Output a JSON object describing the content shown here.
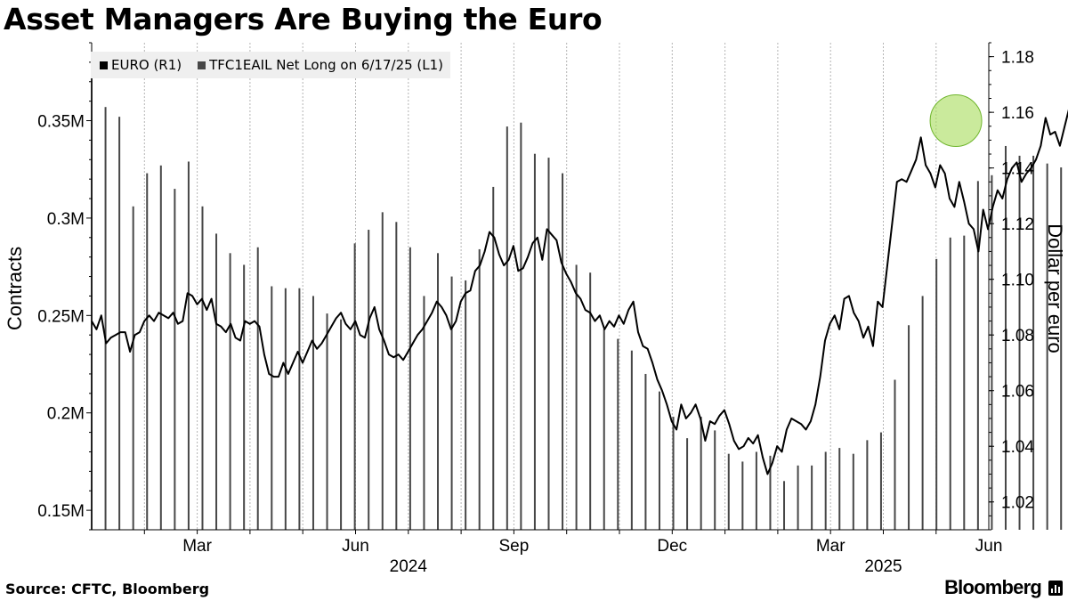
{
  "title": "Asset Managers Are Buying the Euro",
  "source": "Source: CFTC, Bloomberg",
  "brand": "Bloomberg",
  "colors": {
    "line": "#000000",
    "bars": "#474747",
    "grid": "#b4b4b4",
    "highlight": "#a6dc5a",
    "highlight_stroke": "#6fb52c"
  },
  "chart_data": {
    "type": "bar+line",
    "legend": [
      {
        "label": "EURO (R1)",
        "color": "#000000"
      },
      {
        "label": "TFC1EAIL Net Long on 6/17/25 (L1)",
        "color": "#474747"
      }
    ],
    "left_axis": {
      "label": "Contracts",
      "ticks": [
        "0.15M",
        "0.2M",
        "0.25M",
        "0.3M",
        "0.35M"
      ],
      "tick_values": [
        150000,
        200000,
        250000,
        300000,
        350000
      ],
      "range": [
        140000,
        390000
      ]
    },
    "right_axis": {
      "label": "Dollar per euro",
      "ticks": [
        "1.02",
        "1.04",
        "1.06",
        "1.08",
        "1.10",
        "1.12",
        "1.14",
        "1.16",
        "1.18"
      ],
      "tick_values": [
        1.02,
        1.04,
        1.06,
        1.08,
        1.1,
        1.12,
        1.14,
        1.16,
        1.18
      ],
      "range": [
        1.01,
        1.185
      ]
    },
    "x_axis": {
      "range_months": [
        0,
        18.8
      ],
      "month_ticks": [
        {
          "label": "Mar",
          "pos": 2
        },
        {
          "label": "Jun",
          "pos": 5
        },
        {
          "label": "Sep",
          "pos": 8
        },
        {
          "label": "Dec",
          "pos": 11
        },
        {
          "label": "Mar",
          "pos": 14
        },
        {
          "label": "Jun",
          "pos": 17
        }
      ],
      "year_labels": [
        {
          "label": "2024",
          "pos": 6
        },
        {
          "label": "2025",
          "pos": 15
        }
      ],
      "gridline_positions": [
        1,
        2,
        3,
        4,
        5,
        6,
        7,
        8,
        9,
        10,
        11,
        12,
        13,
        14,
        15,
        16,
        17,
        18
      ]
    },
    "series": [
      {
        "name": "TFC1EAIL Net Long (weekly)",
        "axis": "left",
        "type": "bar",
        "start_month": 0.0,
        "step_months": 0.2624,
        "values": [
          375000,
          357000,
          352000,
          306000,
          323000,
          327000,
          315000,
          329000,
          306000,
          292000,
          282000,
          276000,
          285000,
          265000,
          264000,
          264000,
          260000,
          251000,
          248000,
          287000,
          294000,
          303000,
          298000,
          285000,
          260000,
          282000,
          270000,
          268000,
          284000,
          316000,
          347000,
          349000,
          333000,
          331000,
          323000,
          276000,
          272000,
          243000,
          238000,
          232000,
          220000,
          211000,
          198000,
          187000,
          198000,
          191000,
          179000,
          175000,
          180000,
          178000,
          165000,
          173000,
          173000,
          180000,
          182000,
          179000,
          186000,
          190000,
          217000,
          245000,
          260000,
          279000,
          290000,
          291000,
          319000,
          322000,
          337000,
          332000,
          332000,
          328000,
          326000,
          335000,
          340000,
          341000,
          348000,
          349000,
          355000,
          378000
        ]
      },
      {
        "name": "EURO (daily)",
        "axis": "right",
        "type": "line",
        "points": [
          [
            0.0,
            1.085
          ],
          [
            0.1,
            1.082
          ],
          [
            0.2,
            1.087
          ],
          [
            0.3,
            1.077
          ],
          [
            0.4,
            1.079
          ],
          [
            0.5,
            1.08
          ],
          [
            0.6,
            1.081
          ],
          [
            0.7,
            1.081
          ],
          [
            0.8,
            1.074
          ],
          [
            0.9,
            1.08
          ],
          [
            1.0,
            1.081
          ],
          [
            1.1,
            1.085
          ],
          [
            1.2,
            1.087
          ],
          [
            1.3,
            1.085
          ],
          [
            1.4,
            1.088
          ],
          [
            1.5,
            1.087
          ],
          [
            1.6,
            1.086
          ],
          [
            1.7,
            1.088
          ],
          [
            1.8,
            1.084
          ],
          [
            1.9,
            1.085
          ],
          [
            2.0,
            1.095
          ],
          [
            2.1,
            1.094
          ],
          [
            2.2,
            1.091
          ],
          [
            2.3,
            1.093
          ],
          [
            2.4,
            1.089
          ],
          [
            2.5,
            1.093
          ],
          [
            2.6,
            1.084
          ],
          [
            2.7,
            1.083
          ],
          [
            2.8,
            1.081
          ],
          [
            2.9,
            1.084
          ],
          [
            3.0,
            1.079
          ],
          [
            3.1,
            1.078
          ],
          [
            3.2,
            1.085
          ],
          [
            3.3,
            1.084
          ],
          [
            3.4,
            1.085
          ],
          [
            3.5,
            1.083
          ],
          [
            3.6,
            1.073
          ],
          [
            3.7,
            1.066
          ],
          [
            3.8,
            1.065
          ],
          [
            3.9,
            1.065
          ],
          [
            4.0,
            1.07
          ],
          [
            4.1,
            1.066
          ],
          [
            4.2,
            1.07
          ],
          [
            4.3,
            1.074
          ],
          [
            4.4,
            1.07
          ],
          [
            4.5,
            1.074
          ],
          [
            4.6,
            1.078
          ],
          [
            4.7,
            1.075
          ],
          [
            4.8,
            1.077
          ],
          [
            4.9,
            1.08
          ],
          [
            5.0,
            1.083
          ],
          [
            5.1,
            1.086
          ],
          [
            5.2,
            1.088
          ],
          [
            5.3,
            1.084
          ],
          [
            5.4,
            1.082
          ],
          [
            5.5,
            1.085
          ],
          [
            5.6,
            1.08
          ],
          [
            5.7,
            1.079
          ],
          [
            5.8,
            1.086
          ],
          [
            5.9,
            1.09
          ],
          [
            6.0,
            1.082
          ],
          [
            6.1,
            1.078
          ],
          [
            6.2,
            1.073
          ],
          [
            6.3,
            1.072
          ],
          [
            6.4,
            1.073
          ],
          [
            6.5,
            1.071
          ],
          [
            6.6,
            1.074
          ],
          [
            6.7,
            1.077
          ],
          [
            6.8,
            1.08
          ],
          [
            6.9,
            1.082
          ],
          [
            7.0,
            1.085
          ],
          [
            7.1,
            1.088
          ],
          [
            7.2,
            1.092
          ],
          [
            7.3,
            1.09
          ],
          [
            7.4,
            1.087
          ],
          [
            7.5,
            1.082
          ],
          [
            7.6,
            1.085
          ],
          [
            7.7,
            1.092
          ],
          [
            7.8,
            1.095
          ],
          [
            7.9,
            1.096
          ],
          [
            8.0,
            1.103
          ],
          [
            8.1,
            1.105
          ],
          [
            8.2,
            1.11
          ],
          [
            8.3,
            1.117
          ],
          [
            8.4,
            1.115
          ],
          [
            8.5,
            1.109
          ],
          [
            8.6,
            1.105
          ],
          [
            8.7,
            1.107
          ],
          [
            8.8,
            1.112
          ],
          [
            8.9,
            1.103
          ],
          [
            9.0,
            1.104
          ],
          [
            9.1,
            1.108
          ],
          [
            9.2,
            1.113
          ],
          [
            9.3,
            1.115
          ],
          [
            9.4,
            1.107
          ],
          [
            9.5,
            1.118
          ],
          [
            9.6,
            1.116
          ],
          [
            9.7,
            1.114
          ],
          [
            9.8,
            1.106
          ],
          [
            9.9,
            1.102
          ],
          [
            10.0,
            1.099
          ],
          [
            10.1,
            1.095
          ],
          [
            10.2,
            1.093
          ],
          [
            10.3,
            1.089
          ],
          [
            10.4,
            1.088
          ],
          [
            10.5,
            1.085
          ],
          [
            10.6,
            1.087
          ],
          [
            10.7,
            1.082
          ],
          [
            10.8,
            1.085
          ],
          [
            10.9,
            1.083
          ],
          [
            11.0,
            1.087
          ],
          [
            11.1,
            1.084
          ],
          [
            11.2,
            1.089
          ],
          [
            11.3,
            1.092
          ],
          [
            11.4,
            1.081
          ],
          [
            11.5,
            1.076
          ],
          [
            11.6,
            1.075
          ],
          [
            11.7,
            1.07
          ],
          [
            11.8,
            1.064
          ],
          [
            11.9,
            1.06
          ],
          [
            12.0,
            1.055
          ],
          [
            12.1,
            1.049
          ],
          [
            12.2,
            1.046
          ],
          [
            12.3,
            1.055
          ],
          [
            12.4,
            1.05
          ],
          [
            12.5,
            1.052
          ],
          [
            12.6,
            1.055
          ],
          [
            12.7,
            1.05
          ],
          [
            12.8,
            1.042
          ],
          [
            12.9,
            1.049
          ],
          [
            13.0,
            1.048
          ],
          [
            13.1,
            1.051
          ],
          [
            13.2,
            1.053
          ],
          [
            13.3,
            1.048
          ],
          [
            13.4,
            1.042
          ],
          [
            13.5,
            1.039
          ],
          [
            13.6,
            1.04
          ],
          [
            13.7,
            1.043
          ],
          [
            13.8,
            1.041
          ],
          [
            13.9,
            1.044
          ],
          [
            14.0,
            1.036
          ],
          [
            14.1,
            1.03
          ],
          [
            14.2,
            1.034
          ],
          [
            14.3,
            1.04
          ],
          [
            14.4,
            1.038
          ],
          [
            14.5,
            1.046
          ],
          [
            14.6,
            1.05
          ],
          [
            14.7,
            1.049
          ],
          [
            14.8,
            1.048
          ],
          [
            14.9,
            1.046
          ],
          [
            15.0,
            1.049
          ],
          [
            15.1,
            1.055
          ],
          [
            15.2,
            1.065
          ],
          [
            15.3,
            1.078
          ],
          [
            15.4,
            1.084
          ],
          [
            15.5,
            1.087
          ],
          [
            15.6,
            1.082
          ],
          [
            15.7,
            1.093
          ],
          [
            15.8,
            1.094
          ],
          [
            15.9,
            1.088
          ],
          [
            16.0,
            1.085
          ],
          [
            16.1,
            1.079
          ],
          [
            16.2,
            1.083
          ],
          [
            16.3,
            1.076
          ],
          [
            16.4,
            1.092
          ],
          [
            16.5,
            1.09
          ],
          [
            16.6,
            1.105
          ],
          [
            16.7,
            1.12
          ],
          [
            16.8,
            1.135
          ],
          [
            16.9,
            1.136
          ],
          [
            17.0,
            1.135
          ],
          [
            17.1,
            1.139
          ],
          [
            17.2,
            1.143
          ],
          [
            17.3,
            1.151
          ],
          [
            17.4,
            1.141
          ],
          [
            17.5,
            1.138
          ],
          [
            17.6,
            1.133
          ],
          [
            17.7,
            1.141
          ],
          [
            17.8,
            1.138
          ],
          [
            17.9,
            1.129
          ],
          [
            18.0,
            1.126
          ],
          [
            18.1,
            1.135
          ],
          [
            18.2,
            1.128
          ],
          [
            18.3,
            1.12
          ],
          [
            18.4,
            1.118
          ],
          [
            18.5,
            1.11
          ],
          [
            18.6,
            1.125
          ],
          [
            18.7,
            1.118
          ],
          [
            18.8,
            1.126
          ],
          [
            18.9,
            1.132
          ],
          [
            19.0,
            1.129
          ],
          [
            19.1,
            1.136
          ],
          [
            19.2,
            1.14
          ],
          [
            19.3,
            1.142
          ],
          [
            19.4,
            1.135
          ],
          [
            19.5,
            1.138
          ],
          [
            19.6,
            1.14
          ],
          [
            19.7,
            1.143
          ],
          [
            19.8,
            1.148
          ],
          [
            19.9,
            1.158
          ],
          [
            20.0,
            1.152
          ],
          [
            20.1,
            1.153
          ],
          [
            20.2,
            1.148
          ],
          [
            20.3,
            1.155
          ],
          [
            20.4,
            1.162
          ],
          [
            20.5,
            1.165
          ],
          [
            20.6,
            1.17
          ],
          [
            20.7,
            1.17
          ]
        ]
      }
    ],
    "annotation": {
      "type": "circle",
      "x_month": 17.7,
      "y_value": 1.157,
      "color": "#a6dc5a"
    }
  }
}
